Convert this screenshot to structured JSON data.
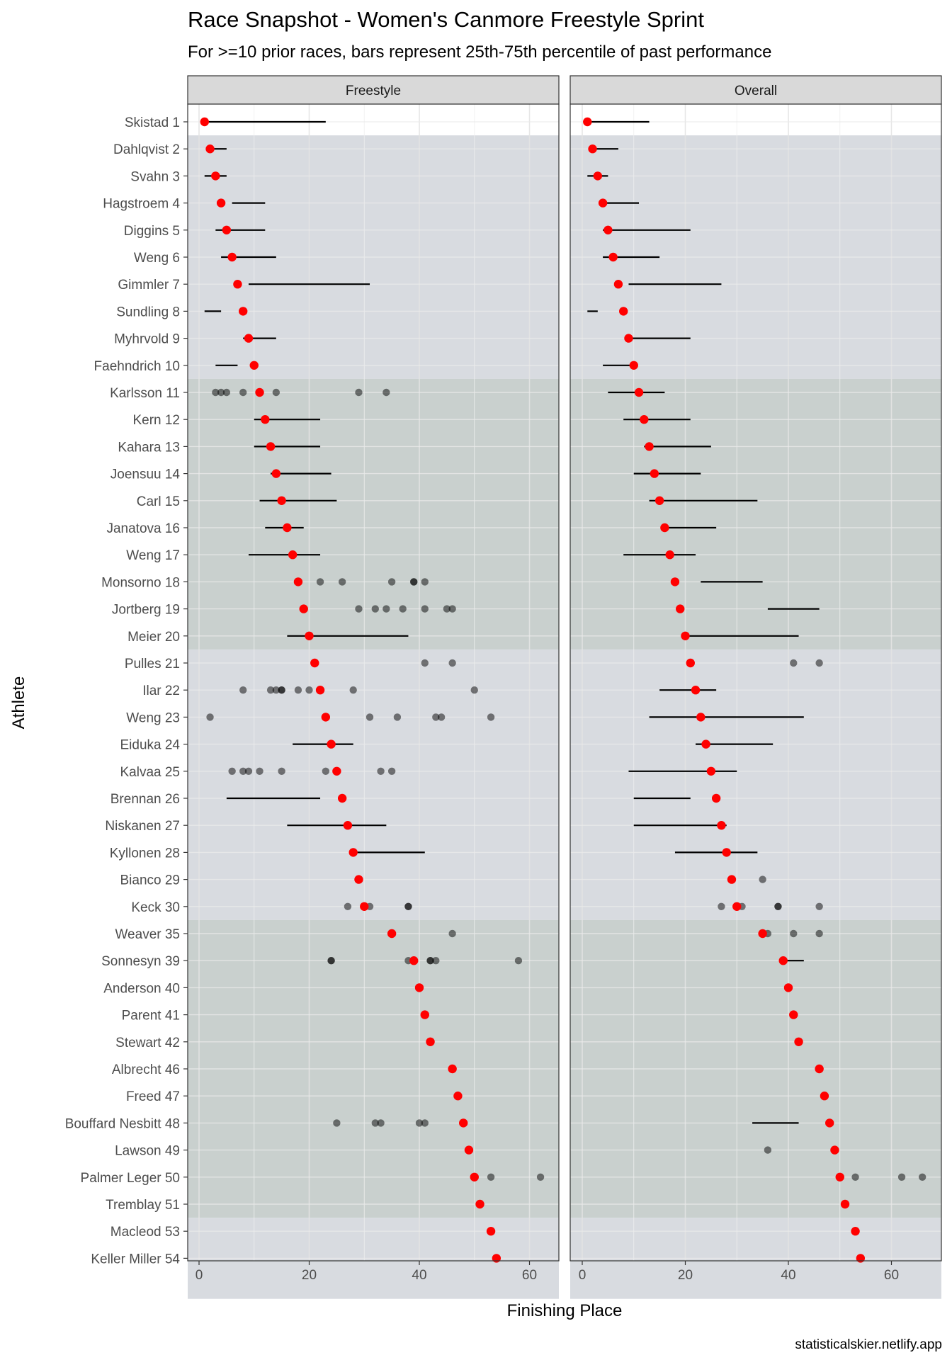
{
  "chart_data": {
    "type": "scatter",
    "title": "Race Snapshot -  Women's Canmore Freestyle Sprint",
    "subtitle": "For >=10 prior races, bars represent 25th-75th percentile of past performance",
    "xlabel": "Finishing Place",
    "ylabel": "Athlete",
    "caption": "statisticalskier.netlify.app",
    "xlim": [
      -2,
      69
    ],
    "x_ticks": [
      0,
      20,
      40,
      60
    ],
    "grid": true,
    "facets": [
      "Freestyle",
      "Overall"
    ],
    "colors": {
      "current_place": "#ff0000",
      "past_result": "#000000",
      "band_light": "#d8dbe0",
      "band_dark": "#c9d0ce",
      "strip_fill": "#d9d9d9"
    },
    "bands": [
      {
        "from": 2,
        "to": 10,
        "shade": "light"
      },
      {
        "from": 11,
        "to": 20,
        "shade": "dark"
      },
      {
        "from": 21,
        "to": 30,
        "shade": "light"
      },
      {
        "from": 31,
        "to": 41,
        "shade": "dark"
      },
      {
        "from": 42,
        "to": 44,
        "shade": "light"
      }
    ],
    "athletes": [
      {
        "label": "Skistad 1",
        "place": 1,
        "fs_bar": [
          1,
          23
        ],
        "ov_bar": [
          1,
          13
        ]
      },
      {
        "label": "Dahlqvist 2",
        "place": 2,
        "fs_bar": [
          2,
          5
        ],
        "ov_bar": [
          2,
          7
        ]
      },
      {
        "label": "Svahn 3",
        "place": 3,
        "fs_bar": [
          1,
          5
        ],
        "ov_bar": [
          1,
          5
        ]
      },
      {
        "label": "Hagstroem 4",
        "place": 4,
        "fs_bar": [
          6,
          12
        ],
        "ov_bar": [
          4,
          11
        ]
      },
      {
        "label": "Diggins 5",
        "place": 5,
        "fs_bar": [
          3,
          12
        ],
        "ov_bar": [
          4,
          21
        ]
      },
      {
        "label": "Weng 6",
        "place": 6,
        "fs_bar": [
          4,
          14
        ],
        "ov_bar": [
          4,
          15
        ]
      },
      {
        "label": "Gimmler 7",
        "place": 7,
        "fs_bar": [
          9,
          31
        ],
        "ov_bar": [
          9,
          27
        ]
      },
      {
        "label": "Sundling 8",
        "place": 8,
        "fs_bar": [
          1,
          4
        ],
        "ov_bar": [
          1,
          3
        ]
      },
      {
        "label": "Myhrvold 9",
        "place": 9,
        "fs_bar": [
          8,
          14
        ],
        "ov_bar": [
          9,
          21
        ]
      },
      {
        "label": "Faehndrich 10",
        "place": 10,
        "fs_bar": [
          3,
          7
        ],
        "ov_bar": [
          4,
          10
        ]
      },
      {
        "label": "Karlsson 11",
        "place": 11,
        "fs_pts": [
          3,
          4,
          5,
          8,
          14,
          29,
          34
        ],
        "ov_bar": [
          5,
          16
        ]
      },
      {
        "label": "Kern 12",
        "place": 12,
        "fs_bar": [
          10,
          22
        ],
        "ov_bar": [
          8,
          21
        ]
      },
      {
        "label": "Kahara 13",
        "place": 13,
        "fs_bar": [
          10,
          22
        ],
        "ov_bar": [
          12,
          25
        ]
      },
      {
        "label": "Joensuu 14",
        "place": 14,
        "fs_bar": [
          13,
          24
        ],
        "ov_bar": [
          10,
          23
        ]
      },
      {
        "label": "Carl 15",
        "place": 15,
        "fs_bar": [
          11,
          25
        ],
        "ov_bar": [
          13,
          34
        ]
      },
      {
        "label": "Janatova 16",
        "place": 16,
        "fs_bar": [
          12,
          19
        ],
        "ov_bar": [
          16,
          26
        ]
      },
      {
        "label": "Weng 17",
        "place": 17,
        "fs_bar": [
          9,
          22
        ],
        "ov_bar": [
          8,
          22
        ]
      },
      {
        "label": "Monsorno 18",
        "place": 18,
        "fs_pts": [
          22,
          26,
          35,
          39,
          39,
          41
        ],
        "ov_bar": [
          23,
          35
        ]
      },
      {
        "label": "Jortberg 19",
        "place": 19,
        "fs_pts": [
          29,
          32,
          34,
          37,
          41,
          45,
          46
        ],
        "ov_bar": [
          36,
          46
        ]
      },
      {
        "label": "Meier 20",
        "place": 20,
        "fs_bar": [
          16,
          38
        ],
        "ov_bar": [
          20,
          42
        ]
      },
      {
        "label": "Pulles 21",
        "place": 21,
        "fs_pts": [
          41,
          46
        ],
        "ov_pts": [
          41,
          46
        ]
      },
      {
        "label": "Ilar 22",
        "place": 22,
        "fs_pts": [
          8,
          13,
          14,
          15,
          15,
          18,
          20,
          28,
          50
        ],
        "ov_bar": [
          15,
          26
        ]
      },
      {
        "label": "Weng 23",
        "place": 23,
        "fs_pts": [
          2,
          31,
          36,
          43,
          44,
          53
        ],
        "ov_bar": [
          13,
          43
        ]
      },
      {
        "label": "Eiduka 24",
        "place": 24,
        "fs_bar": [
          17,
          28
        ],
        "ov_bar": [
          22,
          37
        ]
      },
      {
        "label": "Kalvaa 25",
        "place": 25,
        "fs_pts": [
          6,
          8,
          9,
          11,
          15,
          23,
          33,
          35
        ],
        "ov_bar": [
          9,
          30
        ]
      },
      {
        "label": "Brennan 26",
        "place": 26,
        "fs_bar": [
          5,
          22
        ],
        "ov_bar": [
          10,
          21
        ]
      },
      {
        "label": "Niskanen 27",
        "place": 27,
        "fs_bar": [
          16,
          34
        ],
        "ov_bar": [
          10,
          28
        ]
      },
      {
        "label": "Kyllonen 28",
        "place": 28,
        "fs_bar": [
          28,
          41
        ],
        "ov_bar": [
          18,
          34
        ]
      },
      {
        "label": "Bianco 29",
        "place": 29,
        "ov_pts": [
          35
        ]
      },
      {
        "label": "Keck 30",
        "place": 30,
        "fs_pts": [
          27,
          31,
          38,
          38
        ],
        "ov_pts": [
          27,
          31,
          38,
          38,
          46
        ]
      },
      {
        "label": "Weaver 35",
        "place": 35,
        "fs_pts": [
          46
        ],
        "ov_pts": [
          36,
          41,
          46
        ]
      },
      {
        "label": "Sonnesyn 39",
        "place": 39,
        "fs_pts": [
          24,
          24,
          38,
          39,
          42,
          42,
          43,
          58
        ],
        "ov_bar": [
          39,
          43
        ]
      },
      {
        "label": "Anderson 40",
        "place": 40
      },
      {
        "label": "Parent 41",
        "place": 41
      },
      {
        "label": "Stewart 42",
        "place": 42
      },
      {
        "label": "Albrecht 46",
        "place": 46
      },
      {
        "label": "Freed 47",
        "place": 47
      },
      {
        "label": "Bouffard Nesbitt 48",
        "place": 48,
        "fs_pts": [
          25,
          32,
          33,
          40,
          41
        ],
        "ov_bar": [
          33,
          42
        ]
      },
      {
        "label": "Lawson 49",
        "place": 49,
        "ov_pts": [
          36
        ]
      },
      {
        "label": "Palmer Leger 50",
        "place": 50,
        "fs_pts": [
          53,
          62
        ],
        "ov_pts": [
          53,
          62,
          66
        ]
      },
      {
        "label": "Tremblay 51",
        "place": 51
      },
      {
        "label": "Macleod 53",
        "place": 53
      },
      {
        "label": "Keller Miller 54",
        "place": 54
      }
    ]
  }
}
